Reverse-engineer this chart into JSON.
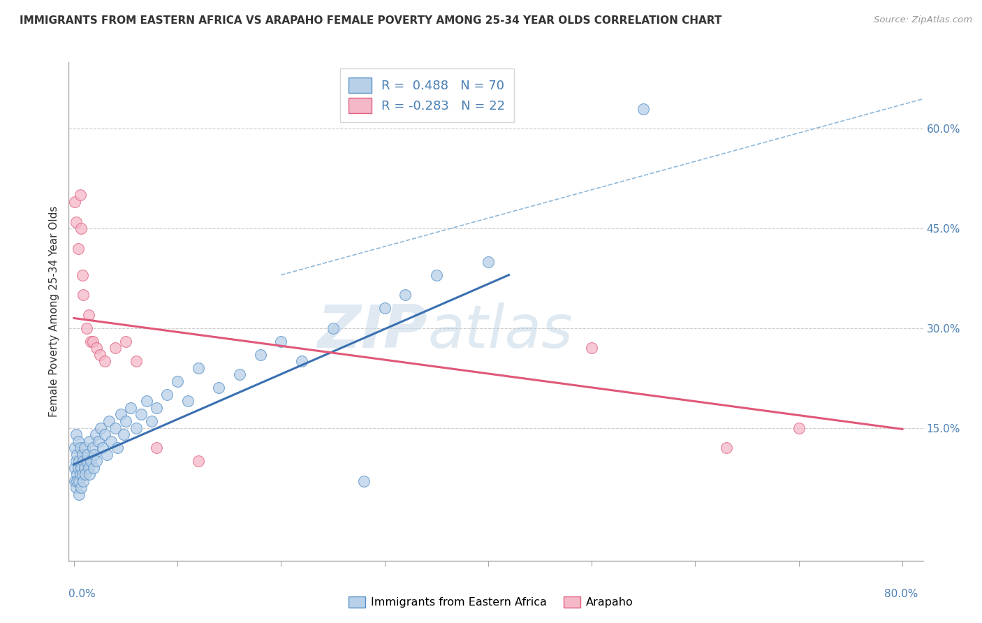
{
  "title": "IMMIGRANTS FROM EASTERN AFRICA VS ARAPAHO FEMALE POVERTY AMONG 25-34 YEAR OLDS CORRELATION CHART",
  "source": "Source: ZipAtlas.com",
  "ylabel": "Female Poverty Among 25-34 Year Olds",
  "x_ticks": [
    0.0,
    0.1,
    0.2,
    0.3,
    0.4,
    0.5,
    0.6,
    0.7,
    0.8
  ],
  "y_ticks_right": [
    0.15,
    0.3,
    0.45,
    0.6
  ],
  "y_tick_labels_right": [
    "15.0%",
    "30.0%",
    "45.0%",
    "60.0%"
  ],
  "xlim": [
    -0.005,
    0.82
  ],
  "ylim": [
    -0.05,
    0.7
  ],
  "blue_fill_color": "#b8d0e8",
  "blue_edge_color": "#5590c8",
  "pink_fill_color": "#f5b8c8",
  "pink_edge_color": "#e06080",
  "blue_line_color": "#3a70b0",
  "pink_line_color": "#e05878",
  "dashed_line_color": "#90b8d8",
  "R_blue": 0.488,
  "N_blue": 70,
  "R_pink": -0.283,
  "N_pink": 22,
  "legend_label_blue": "Immigrants from Eastern Africa",
  "legend_label_pink": "Arapaho",
  "watermark_zip": "ZIP",
  "watermark_atlas": "atlas",
  "blue_scatter_x": [
    0.001,
    0.001,
    0.001,
    0.002,
    0.002,
    0.002,
    0.003,
    0.003,
    0.003,
    0.004,
    0.004,
    0.005,
    0.005,
    0.005,
    0.006,
    0.006,
    0.007,
    0.007,
    0.008,
    0.008,
    0.009,
    0.009,
    0.01,
    0.01,
    0.011,
    0.012,
    0.013,
    0.014,
    0.015,
    0.015,
    0.016,
    0.018,
    0.019,
    0.02,
    0.021,
    0.022,
    0.024,
    0.026,
    0.028,
    0.03,
    0.032,
    0.034,
    0.036,
    0.04,
    0.042,
    0.045,
    0.048,
    0.05,
    0.055,
    0.06,
    0.065,
    0.07,
    0.075,
    0.08,
    0.09,
    0.1,
    0.11,
    0.12,
    0.14,
    0.16,
    0.18,
    0.2,
    0.22,
    0.25,
    0.28,
    0.3,
    0.32,
    0.35,
    0.4,
    0.55
  ],
  "blue_scatter_y": [
    0.09,
    0.07,
    0.12,
    0.06,
    0.1,
    0.14,
    0.08,
    0.11,
    0.07,
    0.09,
    0.13,
    0.07,
    0.1,
    0.05,
    0.08,
    0.12,
    0.09,
    0.06,
    0.11,
    0.08,
    0.07,
    0.1,
    0.09,
    0.12,
    0.08,
    0.1,
    0.11,
    0.09,
    0.13,
    0.08,
    0.1,
    0.12,
    0.09,
    0.11,
    0.14,
    0.1,
    0.13,
    0.15,
    0.12,
    0.14,
    0.11,
    0.16,
    0.13,
    0.15,
    0.12,
    0.17,
    0.14,
    0.16,
    0.18,
    0.15,
    0.17,
    0.19,
    0.16,
    0.18,
    0.2,
    0.22,
    0.19,
    0.24,
    0.21,
    0.23,
    0.26,
    0.28,
    0.25,
    0.3,
    0.07,
    0.33,
    0.35,
    0.38,
    0.4,
    0.63
  ],
  "pink_scatter_x": [
    0.001,
    0.002,
    0.004,
    0.006,
    0.007,
    0.008,
    0.009,
    0.012,
    0.014,
    0.016,
    0.018,
    0.022,
    0.025,
    0.03,
    0.04,
    0.05,
    0.06,
    0.08,
    0.12,
    0.5,
    0.63,
    0.7
  ],
  "pink_scatter_y": [
    0.49,
    0.46,
    0.42,
    0.5,
    0.45,
    0.38,
    0.35,
    0.3,
    0.32,
    0.28,
    0.28,
    0.27,
    0.26,
    0.25,
    0.27,
    0.28,
    0.25,
    0.12,
    0.1,
    0.27,
    0.12,
    0.15
  ],
  "blue_trend_x": [
    0.0,
    0.42
  ],
  "blue_trend_y": [
    0.095,
    0.38
  ],
  "pink_trend_x": [
    0.0,
    0.8
  ],
  "pink_trend_y": [
    0.315,
    0.148
  ],
  "dashed_trend_x": [
    0.2,
    0.82
  ],
  "dashed_trend_y": [
    0.38,
    0.645
  ]
}
